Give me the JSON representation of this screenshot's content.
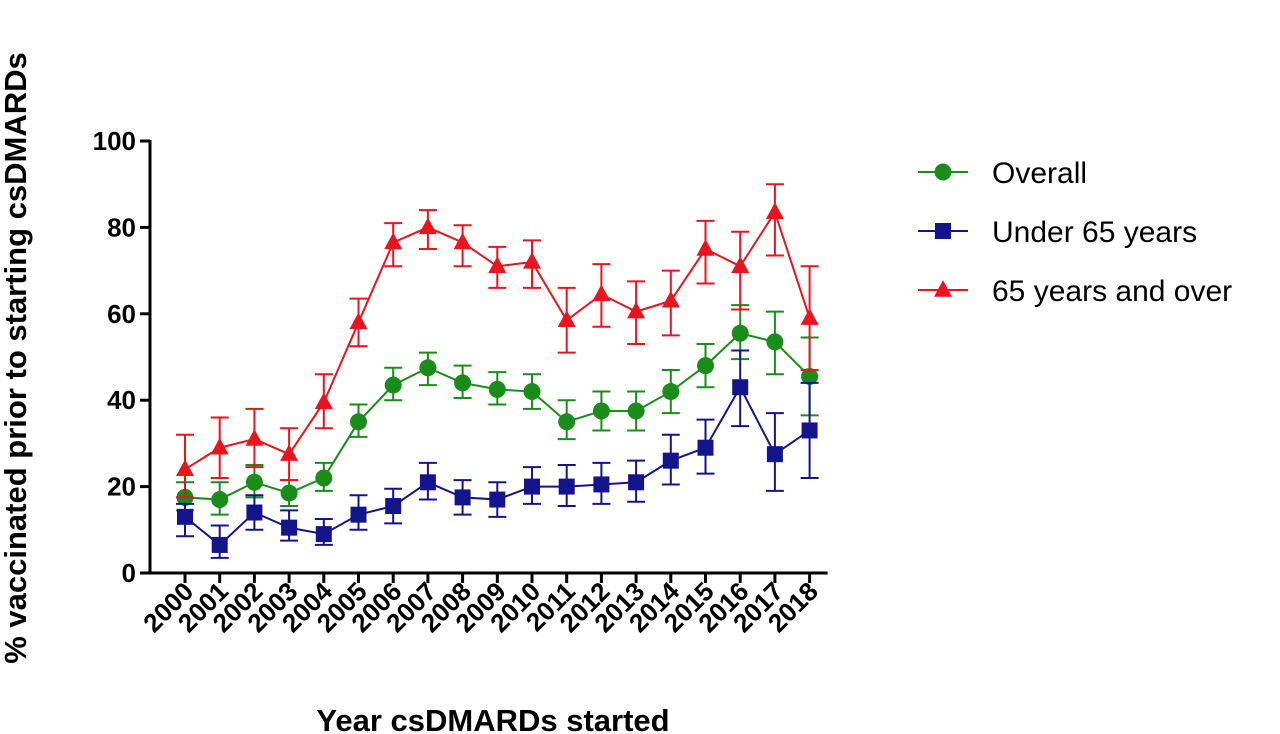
{
  "chart_data": {
    "type": "line",
    "xlabel": "Year csDMARDs started",
    "ylabel": "% vaccinated prior to starting  csDMARDs",
    "ylim": [
      0,
      100
    ],
    "yticks": [
      0,
      20,
      40,
      60,
      80,
      100
    ],
    "categories": [
      "2000",
      "2001",
      "2002",
      "2003",
      "2004",
      "2005",
      "2006",
      "2007",
      "2008",
      "2009",
      "2010",
      "2011",
      "2012",
      "2013",
      "2014",
      "2015",
      "2016",
      "2017",
      "2018"
    ],
    "legend_position": "top-right",
    "grid": false,
    "series": [
      {
        "name": "Overall",
        "color": "#1a8c1a",
        "marker": "circle",
        "values": [
          17.5,
          17,
          21,
          18.5,
          22,
          35,
          43.5,
          47.5,
          44,
          42.5,
          42,
          35,
          37.5,
          37.5,
          42,
          48,
          55.5,
          53.5,
          45.5
        ],
        "err_low": [
          14.5,
          13.5,
          17.5,
          15.5,
          19,
          31.5,
          40,
          43.5,
          40.5,
          39,
          38,
          31,
          33,
          33,
          37,
          43,
          49.5,
          46,
          36.5
        ],
        "err_high": [
          21,
          21,
          25,
          21.5,
          25.5,
          39,
          47.5,
          51,
          48,
          46.5,
          46,
          40,
          42,
          42,
          47,
          53,
          62,
          60.5,
          54.5
        ]
      },
      {
        "name": "Under 65 years",
        "color": "#14148c",
        "marker": "square",
        "values": [
          13,
          6.5,
          14,
          10.5,
          9,
          13.5,
          15.5,
          21,
          17.5,
          17,
          20,
          20,
          20.5,
          21,
          26,
          29,
          43,
          27.5,
          33
        ],
        "err_low": [
          8.5,
          3.5,
          10,
          7.5,
          6.5,
          10,
          11.5,
          17,
          13.5,
          13,
          16,
          15.5,
          16,
          16.5,
          20.5,
          23,
          34,
          19,
          22
        ],
        "err_high": [
          16,
          11,
          18,
          14.5,
          12.5,
          18,
          19.5,
          25.5,
          21.5,
          21,
          24.5,
          25,
          25.5,
          26,
          32,
          35.5,
          51.5,
          37,
          44
        ]
      },
      {
        "name": "65 years and over",
        "color": "#e8141e",
        "marker": "triangle",
        "values": [
          24,
          29,
          31,
          27.5,
          39.5,
          58,
          76.5,
          80,
          76.5,
          71,
          72,
          58.5,
          64.5,
          60.5,
          63,
          75,
          71,
          83.5,
          59
        ],
        "err_low": [
          17.5,
          22,
          24.5,
          21.5,
          33.5,
          52.5,
          71,
          75,
          71,
          66,
          66,
          51,
          57,
          53,
          55,
          67,
          61,
          73.5,
          47
        ],
        "err_high": [
          32,
          36,
          38,
          33.5,
          46,
          63.5,
          81,
          84,
          80.5,
          75.5,
          77,
          66,
          71.5,
          67.5,
          70,
          81.5,
          79,
          90,
          71
        ]
      }
    ]
  }
}
